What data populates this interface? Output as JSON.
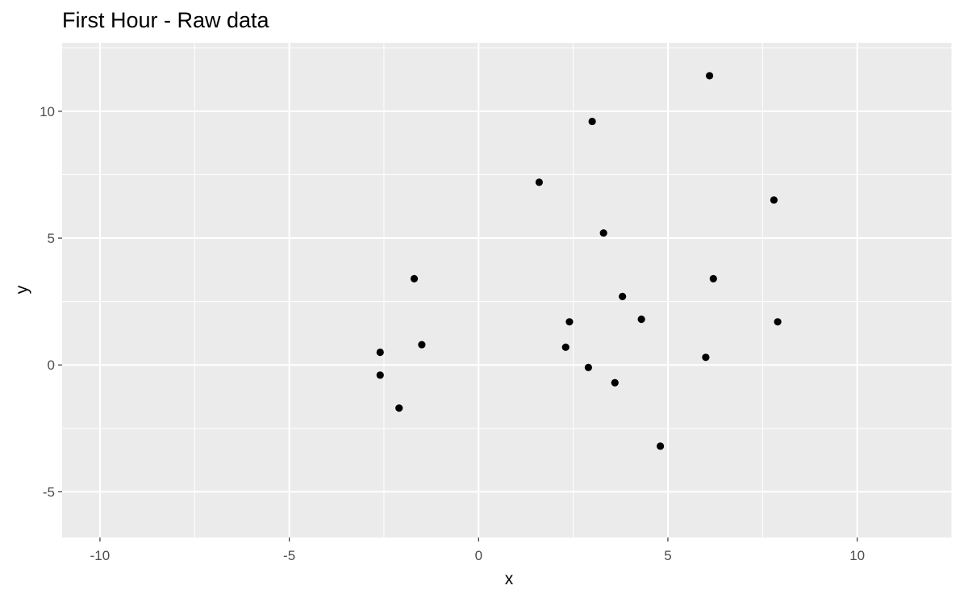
{
  "chart_data": {
    "type": "scatter",
    "title": "First Hour - Raw data",
    "xlabel": "x",
    "ylabel": "y",
    "xlim": [
      -11,
      12.5
    ],
    "ylim": [
      -6.8,
      12.7
    ],
    "x_ticks": [
      -10,
      -5,
      0,
      5,
      10
    ],
    "y_ticks": [
      -5,
      0,
      5,
      10
    ],
    "x_tick_labels": [
      "-10",
      "-5",
      "0",
      "5",
      "10"
    ],
    "y_tick_labels": [
      "-5",
      "0",
      "5",
      "10"
    ],
    "grid": true,
    "legend": "none",
    "colors": {
      "panel": "#ebebeb",
      "grid": "#ffffff",
      "point": "#000000"
    },
    "points": [
      {
        "x": 6.1,
        "y": 11.4
      },
      {
        "x": 3.0,
        "y": 9.6
      },
      {
        "x": 1.6,
        "y": 7.2
      },
      {
        "x": 7.8,
        "y": 6.5
      },
      {
        "x": 3.3,
        "y": 5.2
      },
      {
        "x": -1.7,
        "y": 3.4
      },
      {
        "x": 6.2,
        "y": 3.4
      },
      {
        "x": 3.8,
        "y": 2.7
      },
      {
        "x": 4.3,
        "y": 1.8
      },
      {
        "x": 2.4,
        "y": 1.7
      },
      {
        "x": 7.9,
        "y": 1.7
      },
      {
        "x": -1.5,
        "y": 0.8
      },
      {
        "x": 2.3,
        "y": 0.7
      },
      {
        "x": -2.6,
        "y": 0.5
      },
      {
        "x": 6.0,
        "y": 0.3
      },
      {
        "x": 2.9,
        "y": -0.1
      },
      {
        "x": -2.6,
        "y": -0.4
      },
      {
        "x": 3.6,
        "y": -0.7
      },
      {
        "x": -2.1,
        "y": -1.7
      },
      {
        "x": 4.8,
        "y": -3.2
      }
    ]
  }
}
